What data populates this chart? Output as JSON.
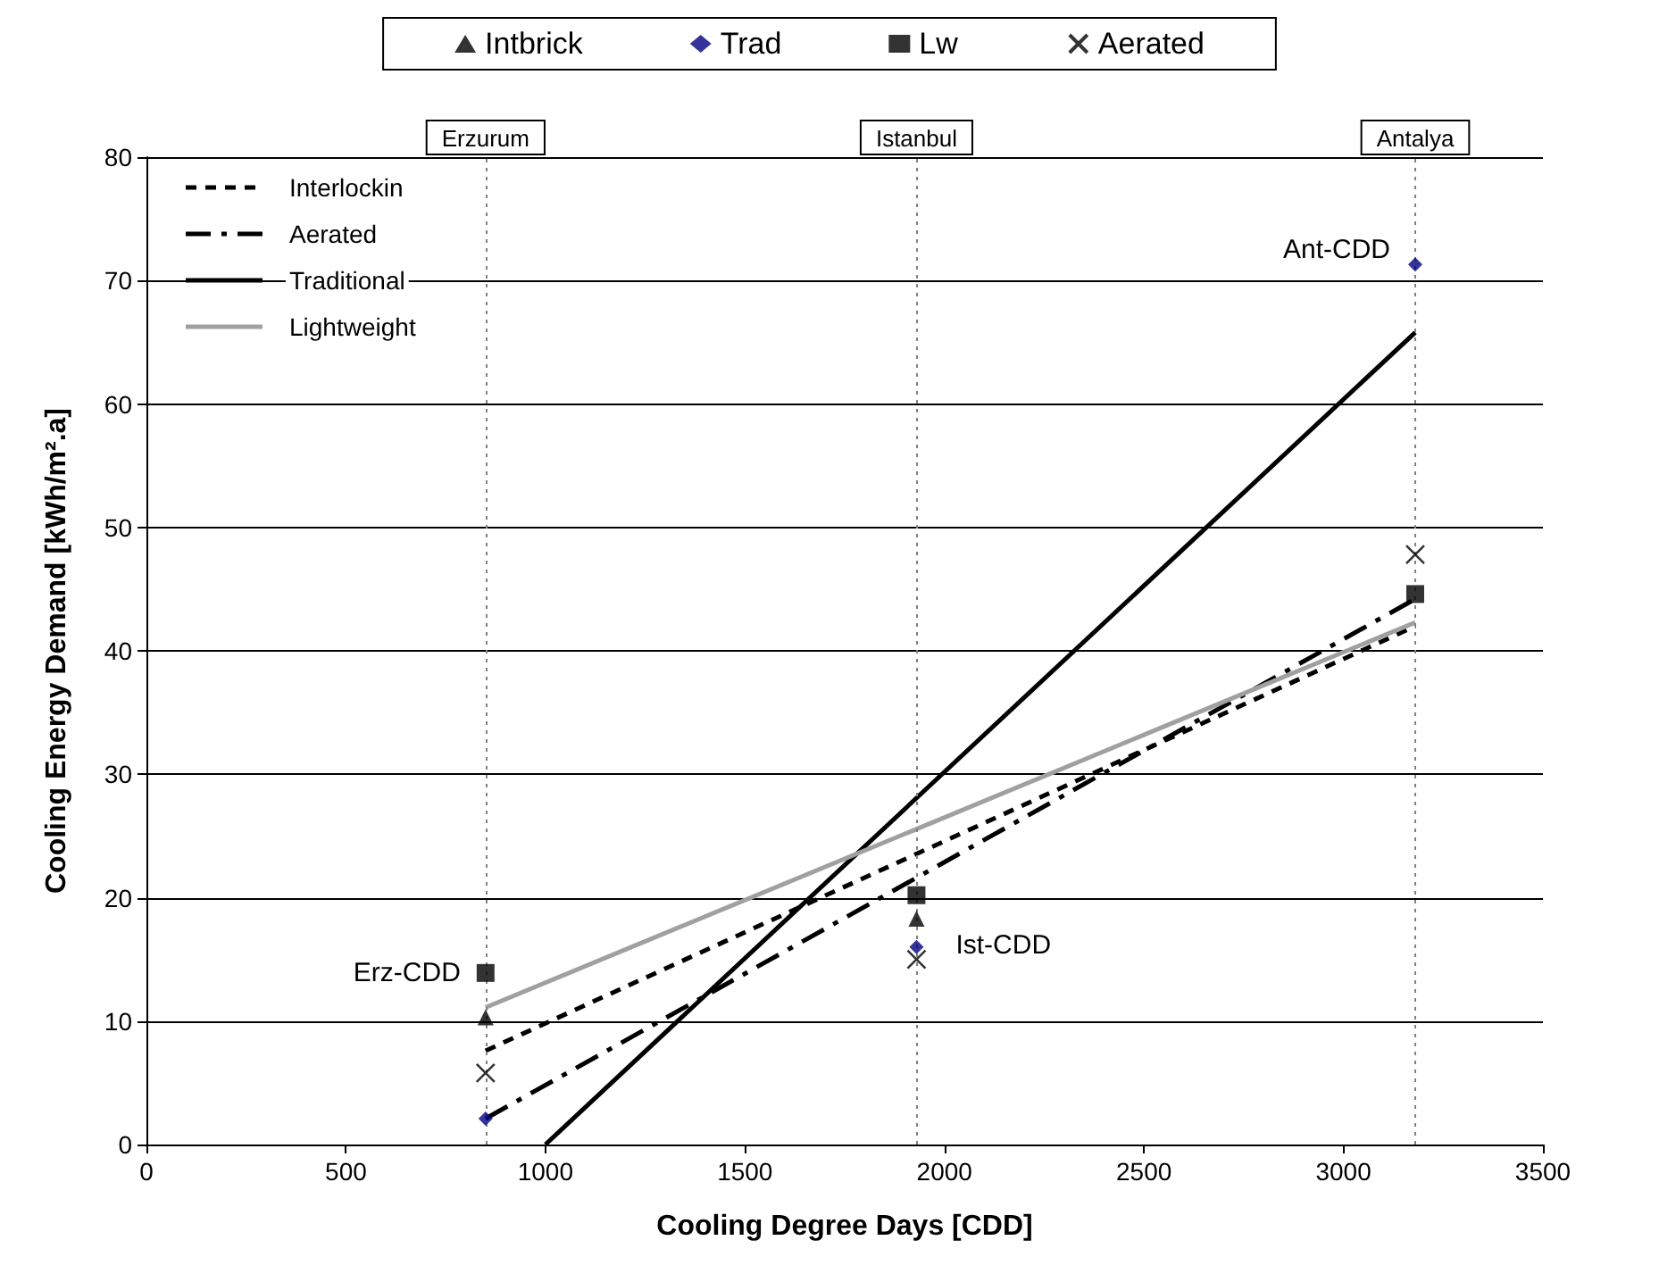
{
  "chart_data": {
    "type": "scatter",
    "xlabel": "Cooling Degree Days [CDD]",
    "ylabel": "Cooling Energy Demand [kWh/m².a]",
    "xlim": [
      0,
      3500
    ],
    "xticks": [
      0,
      500,
      1000,
      1500,
      2000,
      2500,
      3000,
      3500
    ],
    "ylim": [
      0,
      80
    ],
    "yticks": [
      0,
      10,
      20,
      30,
      40,
      50,
      60,
      70,
      80
    ],
    "grid": "y",
    "legend": "top",
    "series": [
      {
        "name": "Intbrick",
        "marker": "triangle",
        "color": "#000000",
        "x": [
          850,
          1930
        ],
        "values": [
          10.3,
          18.3
        ]
      },
      {
        "name": "Trad",
        "marker": "diamond",
        "color": "#000080",
        "x": [
          850,
          1930,
          3180
        ],
        "values": [
          2.1,
          16.0,
          71.3
        ]
      },
      {
        "name": "Lw",
        "marker": "square",
        "color": "#000000",
        "x": [
          850,
          1930,
          3180
        ],
        "values": [
          13.9,
          20.2,
          44.6
        ]
      },
      {
        "name": "Aerated",
        "marker": "cross",
        "color": "#000000",
        "x": [
          850,
          1930,
          3180
        ],
        "values": [
          5.8,
          15.0,
          47.8
        ]
      },
      {
        "name": "Interlockin",
        "type": "line",
        "line_style": "dashed",
        "color": "#000000",
        "x": [
          850,
          3180
        ],
        "values": [
          7.6,
          42.0
        ]
      },
      {
        "name": "Aerated",
        "type": "line",
        "line_style": "dashdot",
        "color": "#000000",
        "x": [
          850,
          3180
        ],
        "values": [
          2.1,
          44.2
        ]
      },
      {
        "name": "Traditional",
        "type": "line",
        "line_style": "solid",
        "color": "#000000",
        "x": [
          1000,
          3180
        ],
        "values": [
          0,
          65.8
        ]
      },
      {
        "name": "Lightweight",
        "type": "line",
        "line_style": "solid",
        "color": "#a0a0a0",
        "x": [
          850,
          3180
        ],
        "values": [
          11.1,
          42.3
        ]
      }
    ],
    "ref_lines": [
      {
        "axis": "x",
        "value": 850,
        "label": "Erzurum",
        "color": "#808080",
        "line_style": "dotted"
      },
      {
        "axis": "x",
        "value": 1930,
        "label": "Istanbul",
        "color": "#808080",
        "line_style": "dotted"
      },
      {
        "axis": "x",
        "value": 3180,
        "label": "Antalya",
        "color": "#808080",
        "line_style": "dotted"
      }
    ],
    "annotations": [
      {
        "text": "Erz-CDD",
        "x": 850,
        "y": 13.9
      },
      {
        "text": "Ist-CDD",
        "x": 1930,
        "y": 16.0
      },
      {
        "text": "Ant-CDD",
        "x": 3180,
        "y": 71.3
      }
    ]
  }
}
